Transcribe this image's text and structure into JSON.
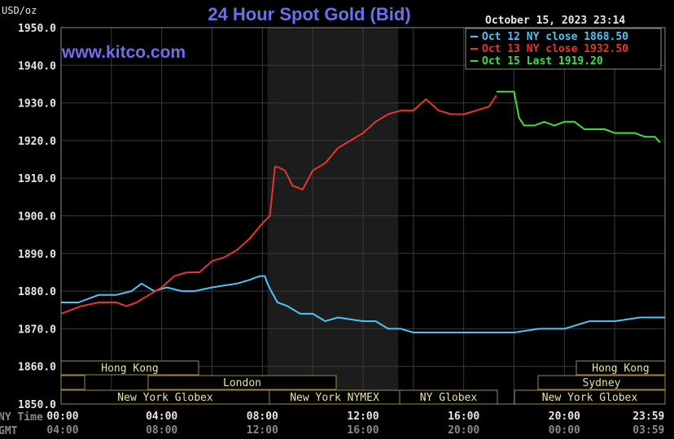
{
  "header": {
    "title": "24 Hour Spot Gold (Bid)",
    "site": "www.kitco.com",
    "datetime": "October 15, 2023 23:14",
    "unit": "USD/oz"
  },
  "axis_rows": {
    "ny_label": "NY Time",
    "gmt_label": "GMT"
  },
  "legend": [
    {
      "label": "Oct 12 NY close 1868.50",
      "color": "#4fc3f7"
    },
    {
      "label": "Oct 13 NY close 1932.50",
      "color": "#e8352a"
    },
    {
      "label": "Oct 15 Last 1919.20",
      "color": "#3de03d"
    }
  ],
  "sessions": [
    {
      "label": "Hong Kong"
    },
    {
      "label": "London"
    },
    {
      "label": "New York Globex"
    },
    {
      "label": "New York NYMEX"
    },
    {
      "label": "NY Globex"
    },
    {
      "label": "Hong Kong"
    },
    {
      "label": "Sydney"
    },
    {
      "label": "New York Globex"
    }
  ],
  "colors": {
    "background": "#000000",
    "grid": "#3a3a3a",
    "shade": "#1c1c1c",
    "session_border": "#a08a3a"
  },
  "chart_data": {
    "type": "line",
    "title": "24 Hour Spot Gold (Bid)",
    "ylabel": "USD/oz",
    "ylim": [
      1850,
      1950
    ],
    "yticks": [
      "1950.0",
      "1940.0",
      "1930.0",
      "1920.0",
      "1910.0",
      "1900.0",
      "1890.0",
      "1880.0",
      "1870.0",
      "1860.0",
      "1850.0"
    ],
    "xlim": [
      0,
      24
    ],
    "xticks_ny": [
      "00:00",
      "04:00",
      "08:00",
      "12:00",
      "16:00",
      "20:00",
      "23:59"
    ],
    "xticks_gmt": [
      "04:00",
      "08:00",
      "12:00",
      "16:00",
      "20:00",
      "00:00",
      "03:59"
    ],
    "grid": true,
    "legend_position": "top-right",
    "series": [
      {
        "name": "Oct 12 NY close 1868.50",
        "color": "#4fc3f7",
        "x": [
          0,
          0.7,
          1.5,
          2.2,
          2.8,
          3.2,
          3.7,
          4.2,
          4.8,
          5.3,
          6.0,
          7.0,
          7.5,
          7.9,
          8.1,
          8.2,
          8.35,
          8.6,
          9.0,
          9.5,
          10.0,
          10.5,
          11.0,
          12.0,
          12.5,
          13.0,
          13.5,
          14.0,
          14.5,
          15.0,
          16.0,
          17.0,
          18.0,
          19.0,
          20.0,
          21.0,
          22.0,
          23.0,
          24.0
        ],
        "y": [
          1877,
          1877,
          1879,
          1879,
          1880,
          1882,
          1880,
          1881,
          1880,
          1880,
          1881,
          1882,
          1883,
          1884,
          1884,
          1882,
          1880,
          1877,
          1876,
          1874,
          1874,
          1872,
          1873,
          1872,
          1872,
          1870,
          1870,
          1869,
          1869,
          1869,
          1869,
          1869,
          1869,
          1870,
          1870,
          1872,
          1872,
          1873,
          1873
        ]
      },
      {
        "name": "Oct 13 NY close 1932.50",
        "color": "#e8352a",
        "x": [
          0,
          0.8,
          1.5,
          2.2,
          2.6,
          3.0,
          3.5,
          4.0,
          4.5,
          5.0,
          5.5,
          6.0,
          6.5,
          7.0,
          7.5,
          8.0,
          8.3,
          8.5,
          8.6,
          8.9,
          9.2,
          9.6,
          10.0,
          10.5,
          11.0,
          11.5,
          12.0,
          12.5,
          13.0,
          13.5,
          14.0,
          14.5,
          15.0,
          15.5,
          16.0,
          16.5,
          17.0,
          17.3
        ],
        "y": [
          1874,
          1876,
          1877,
          1877,
          1876,
          1877,
          1879,
          1881,
          1884,
          1885,
          1885,
          1888,
          1889,
          1891,
          1894,
          1898,
          1900,
          1913,
          1913,
          1912,
          1908,
          1907,
          1912,
          1914,
          1918,
          1920,
          1922,
          1925,
          1927,
          1928,
          1928,
          1931,
          1928,
          1927,
          1927,
          1928,
          1929,
          1932
        ]
      },
      {
        "name": "Oct 15 Last 1919.20",
        "color": "#3de03d",
        "x": [
          17.3,
          17.6,
          18.0,
          18.2,
          18.4,
          18.8,
          19.2,
          19.6,
          20.0,
          20.4,
          20.8,
          21.2,
          21.6,
          22.0,
          22.4,
          22.8,
          23.2,
          23.6,
          23.8
        ],
        "y": [
          1933,
          1933,
          1933,
          1926,
          1924,
          1924,
          1925,
          1924,
          1925,
          1925,
          1923,
          1923,
          1923,
          1922,
          1922,
          1922,
          1921,
          1921,
          1919.5
        ]
      }
    ]
  }
}
